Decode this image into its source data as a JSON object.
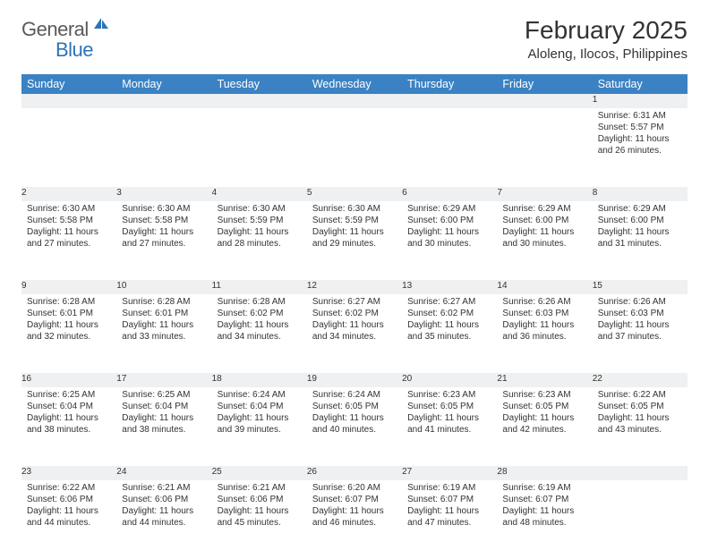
{
  "logo": {
    "general": "General",
    "blue": "Blue"
  },
  "title": "February 2025",
  "location": "Aloleng, Ilocos, Philippines",
  "colors": {
    "header_bg": "#3b82c4",
    "header_text": "#ffffff",
    "daynum_bg": "#eef0f2",
    "row_border": "#9aa4ae",
    "text": "#333333",
    "logo_gray": "#5a5a5a",
    "logo_blue": "#2e73b8"
  },
  "dayNames": [
    "Sunday",
    "Monday",
    "Tuesday",
    "Wednesday",
    "Thursday",
    "Friday",
    "Saturday"
  ],
  "weeks": [
    [
      null,
      null,
      null,
      null,
      null,
      null,
      {
        "n": "1",
        "sr": "Sunrise: 6:31 AM",
        "ss": "Sunset: 5:57 PM",
        "d1": "Daylight: 11 hours",
        "d2": "and 26 minutes."
      }
    ],
    [
      {
        "n": "2",
        "sr": "Sunrise: 6:30 AM",
        "ss": "Sunset: 5:58 PM",
        "d1": "Daylight: 11 hours",
        "d2": "and 27 minutes."
      },
      {
        "n": "3",
        "sr": "Sunrise: 6:30 AM",
        "ss": "Sunset: 5:58 PM",
        "d1": "Daylight: 11 hours",
        "d2": "and 27 minutes."
      },
      {
        "n": "4",
        "sr": "Sunrise: 6:30 AM",
        "ss": "Sunset: 5:59 PM",
        "d1": "Daylight: 11 hours",
        "d2": "and 28 minutes."
      },
      {
        "n": "5",
        "sr": "Sunrise: 6:30 AM",
        "ss": "Sunset: 5:59 PM",
        "d1": "Daylight: 11 hours",
        "d2": "and 29 minutes."
      },
      {
        "n": "6",
        "sr": "Sunrise: 6:29 AM",
        "ss": "Sunset: 6:00 PM",
        "d1": "Daylight: 11 hours",
        "d2": "and 30 minutes."
      },
      {
        "n": "7",
        "sr": "Sunrise: 6:29 AM",
        "ss": "Sunset: 6:00 PM",
        "d1": "Daylight: 11 hours",
        "d2": "and 30 minutes."
      },
      {
        "n": "8",
        "sr": "Sunrise: 6:29 AM",
        "ss": "Sunset: 6:00 PM",
        "d1": "Daylight: 11 hours",
        "d2": "and 31 minutes."
      }
    ],
    [
      {
        "n": "9",
        "sr": "Sunrise: 6:28 AM",
        "ss": "Sunset: 6:01 PM",
        "d1": "Daylight: 11 hours",
        "d2": "and 32 minutes."
      },
      {
        "n": "10",
        "sr": "Sunrise: 6:28 AM",
        "ss": "Sunset: 6:01 PM",
        "d1": "Daylight: 11 hours",
        "d2": "and 33 minutes."
      },
      {
        "n": "11",
        "sr": "Sunrise: 6:28 AM",
        "ss": "Sunset: 6:02 PM",
        "d1": "Daylight: 11 hours",
        "d2": "and 34 minutes."
      },
      {
        "n": "12",
        "sr": "Sunrise: 6:27 AM",
        "ss": "Sunset: 6:02 PM",
        "d1": "Daylight: 11 hours",
        "d2": "and 34 minutes."
      },
      {
        "n": "13",
        "sr": "Sunrise: 6:27 AM",
        "ss": "Sunset: 6:02 PM",
        "d1": "Daylight: 11 hours",
        "d2": "and 35 minutes."
      },
      {
        "n": "14",
        "sr": "Sunrise: 6:26 AM",
        "ss": "Sunset: 6:03 PM",
        "d1": "Daylight: 11 hours",
        "d2": "and 36 minutes."
      },
      {
        "n": "15",
        "sr": "Sunrise: 6:26 AM",
        "ss": "Sunset: 6:03 PM",
        "d1": "Daylight: 11 hours",
        "d2": "and 37 minutes."
      }
    ],
    [
      {
        "n": "16",
        "sr": "Sunrise: 6:25 AM",
        "ss": "Sunset: 6:04 PM",
        "d1": "Daylight: 11 hours",
        "d2": "and 38 minutes."
      },
      {
        "n": "17",
        "sr": "Sunrise: 6:25 AM",
        "ss": "Sunset: 6:04 PM",
        "d1": "Daylight: 11 hours",
        "d2": "and 38 minutes."
      },
      {
        "n": "18",
        "sr": "Sunrise: 6:24 AM",
        "ss": "Sunset: 6:04 PM",
        "d1": "Daylight: 11 hours",
        "d2": "and 39 minutes."
      },
      {
        "n": "19",
        "sr": "Sunrise: 6:24 AM",
        "ss": "Sunset: 6:05 PM",
        "d1": "Daylight: 11 hours",
        "d2": "and 40 minutes."
      },
      {
        "n": "20",
        "sr": "Sunrise: 6:23 AM",
        "ss": "Sunset: 6:05 PM",
        "d1": "Daylight: 11 hours",
        "d2": "and 41 minutes."
      },
      {
        "n": "21",
        "sr": "Sunrise: 6:23 AM",
        "ss": "Sunset: 6:05 PM",
        "d1": "Daylight: 11 hours",
        "d2": "and 42 minutes."
      },
      {
        "n": "22",
        "sr": "Sunrise: 6:22 AM",
        "ss": "Sunset: 6:05 PM",
        "d1": "Daylight: 11 hours",
        "d2": "and 43 minutes."
      }
    ],
    [
      {
        "n": "23",
        "sr": "Sunrise: 6:22 AM",
        "ss": "Sunset: 6:06 PM",
        "d1": "Daylight: 11 hours",
        "d2": "and 44 minutes."
      },
      {
        "n": "24",
        "sr": "Sunrise: 6:21 AM",
        "ss": "Sunset: 6:06 PM",
        "d1": "Daylight: 11 hours",
        "d2": "and 44 minutes."
      },
      {
        "n": "25",
        "sr": "Sunrise: 6:21 AM",
        "ss": "Sunset: 6:06 PM",
        "d1": "Daylight: 11 hours",
        "d2": "and 45 minutes."
      },
      {
        "n": "26",
        "sr": "Sunrise: 6:20 AM",
        "ss": "Sunset: 6:07 PM",
        "d1": "Daylight: 11 hours",
        "d2": "and 46 minutes."
      },
      {
        "n": "27",
        "sr": "Sunrise: 6:19 AM",
        "ss": "Sunset: 6:07 PM",
        "d1": "Daylight: 11 hours",
        "d2": "and 47 minutes."
      },
      {
        "n": "28",
        "sr": "Sunrise: 6:19 AM",
        "ss": "Sunset: 6:07 PM",
        "d1": "Daylight: 11 hours",
        "d2": "and 48 minutes."
      },
      null
    ]
  ]
}
